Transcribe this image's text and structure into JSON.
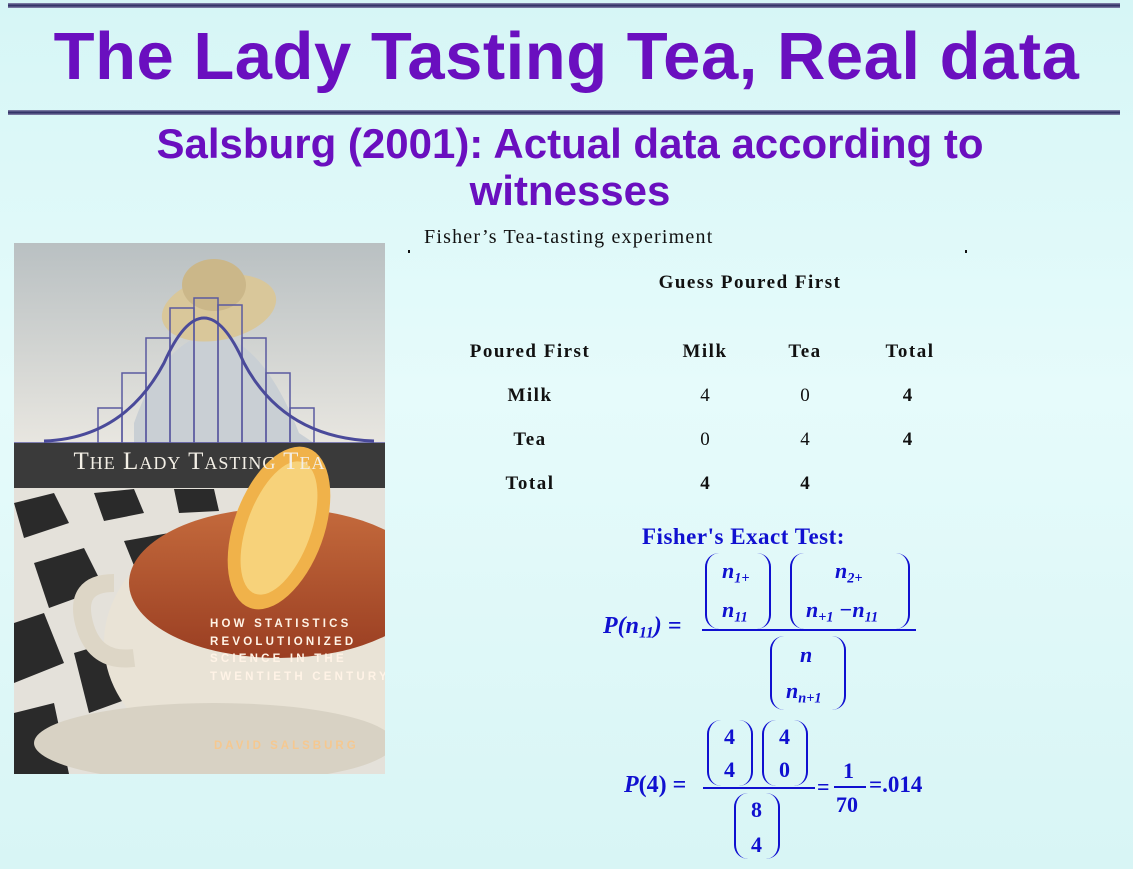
{
  "slide": {
    "title": "The Lady Tasting Tea, Real data",
    "subtitle": "Salsburg (2001): Actual data according to witnesses"
  },
  "book_cover": {
    "title": "The Lady Tasting Tea",
    "subtitle_lines": [
      "How Statistics",
      "Revolutionized",
      "Science in the",
      "Twentieth Century"
    ],
    "author": "David Salsburg"
  },
  "table": {
    "caption": "Fisher’s Tea-tasting experiment",
    "col_group_header": "Guess Poured First",
    "row_header": "Poured First",
    "columns": [
      "Milk",
      "Tea",
      "Total"
    ],
    "rows": [
      {
        "label": "Milk",
        "values": [
          "4",
          "0",
          "4"
        ]
      },
      {
        "label": "Tea",
        "values": [
          "0",
          "4",
          "4"
        ]
      },
      {
        "label": "Total",
        "values": [
          "4",
          "4",
          ""
        ]
      }
    ]
  },
  "formula": {
    "heading": "Fisher's Exact Test:",
    "lhs": "P(n11) =",
    "num1_top": "n1+",
    "num1_bottom": "n11",
    "num2_top": "n2+",
    "num2_bottom": "n+1 −n11",
    "den_top": "n",
    "den_bottom": "nn+1",
    "example_lhs": "P(4) =",
    "ex_num1": [
      "4",
      "4"
    ],
    "ex_num2": [
      "4",
      "0"
    ],
    "ex_den": [
      "8",
      "4"
    ],
    "frac_num": "1",
    "frac_den": "70",
    "equals": "=",
    "result": "=.014"
  },
  "colors": {
    "title": "#6a0fbf",
    "formula": "#1010d0",
    "background": "#d6f6f6"
  }
}
